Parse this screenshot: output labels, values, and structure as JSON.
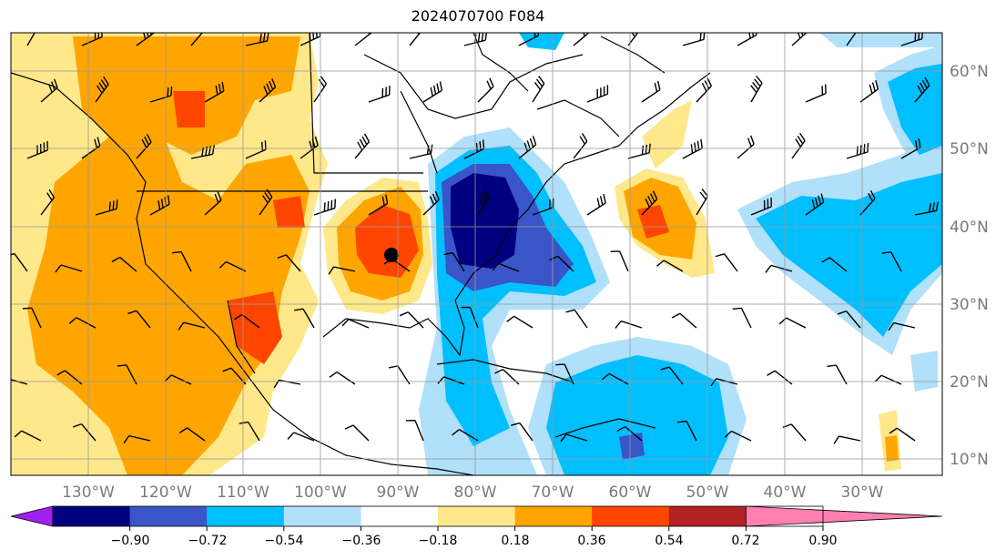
{
  "title": "2024070700 F084",
  "map": {
    "lon_labels": [
      "130°W",
      "120°W",
      "110°W",
      "100°W",
      "90°W",
      "80°W",
      "70°W",
      "60°W",
      "50°W",
      "40°W",
      "30°W"
    ],
    "lat_labels": [
      "60°N",
      "50°N",
      "40°N",
      "30°N",
      "20°N",
      "10°N"
    ],
    "fill_colors": [
      "#a020f0",
      "#000080",
      "#3a55c8",
      "#00bfff",
      "#b0e0fa",
      "#ffffff",
      "#ffe88a",
      "#ffa500",
      "#ff4500",
      "#b22222",
      "#ff80b0"
    ]
  },
  "colorbar": {
    "labels": [
      "−0.90",
      "−0.72",
      "−0.54",
      "−0.36",
      "−0.18",
      "0.18",
      "0.36",
      "0.54",
      "0.72",
      "0.90"
    ],
    "colors": [
      "#a020f0",
      "#000080",
      "#3a55c8",
      "#00bfff",
      "#b0e0fa",
      "#ffffff",
      "#ffe88a",
      "#ffa500",
      "#ff4500",
      "#b22222",
      "#ff80b0"
    ]
  }
}
